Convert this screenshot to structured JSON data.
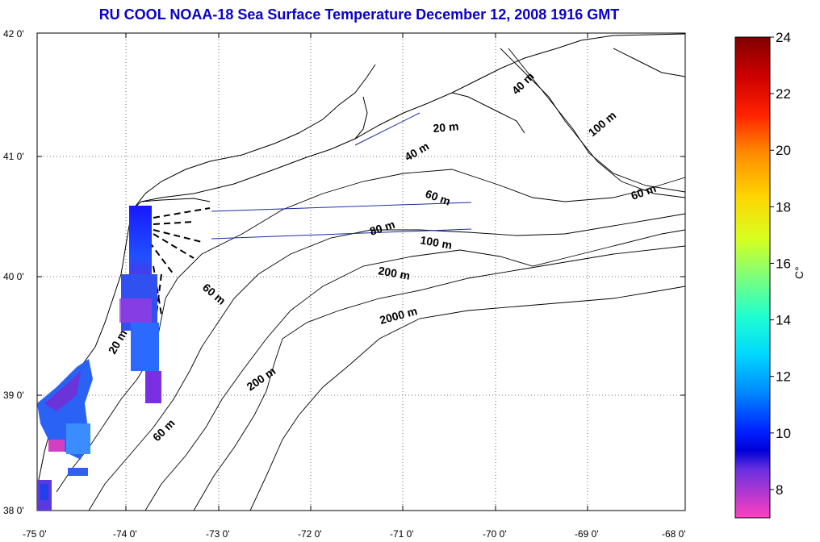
{
  "title": "RU COOL  NOAA-18 Sea Surface Temperature December 12, 2008 1916 GMT",
  "map": {
    "lon_ticks": [
      "-75 0'",
      "-74 0'",
      "-73 0'",
      "-72 0'",
      "-71 0'",
      "-70 0'",
      "-69 0'",
      "-68 0'"
    ],
    "lat_ticks": [
      "42 0'",
      "41 0'",
      "40 0'",
      "39 0'",
      "38 0'"
    ],
    "lon_range": [
      -75,
      -68
    ],
    "lat_range": [
      38,
      42
    ],
    "grid": "dotted",
    "contour_labels": [
      "20 m",
      "40 m",
      "40 m",
      "100 m",
      "60 m",
      "60 m",
      "80 m",
      "100 m",
      "200 m",
      "60 m",
      "2000 m",
      "20 m",
      "200 m",
      "60 m"
    ]
  },
  "colorbar": {
    "label": "C°",
    "ticks": [
      "24",
      "22",
      "20",
      "18",
      "16",
      "14",
      "12",
      "10",
      "8"
    ],
    "range": [
      7,
      24
    ]
  },
  "colors": {
    "title": "#0a00c8",
    "land_outline": "#000000",
    "satellite_track": "#1a2aa0"
  }
}
